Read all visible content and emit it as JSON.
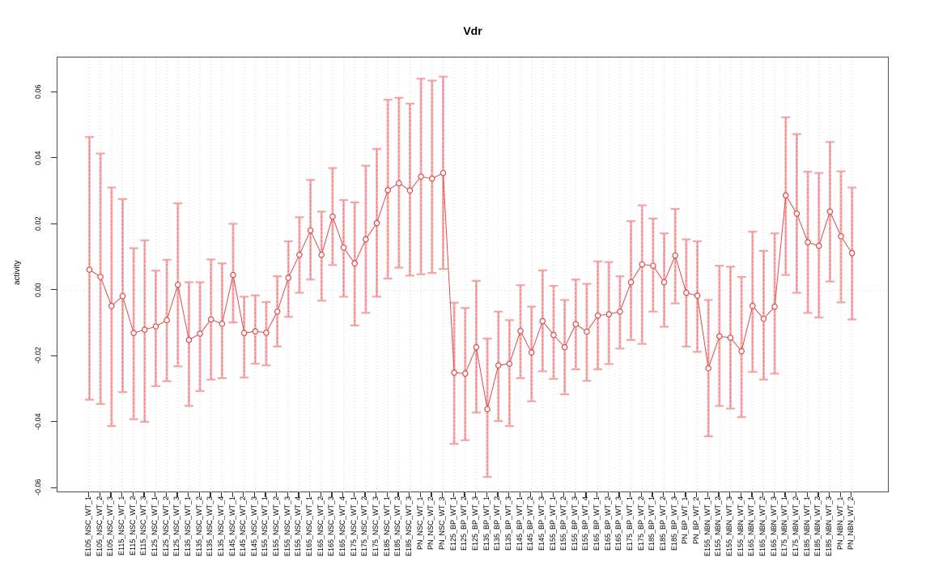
{
  "chart_data": {
    "type": "scatter",
    "title": "Vdr",
    "xlabel": "",
    "ylabel": "activity",
    "ylim": [
      -0.061,
      0.07
    ],
    "y_ticks": [
      -0.06,
      -0.04,
      -0.02,
      0.0,
      0.02,
      0.04,
      0.06
    ],
    "y_tick_labels": [
      "-0.06",
      "-0.04",
      "-0.02",
      "0.00",
      "0.02",
      "0.04",
      "0.06"
    ],
    "grid": "vertical dotted line per category, dotted horizontal line at 0",
    "legend_position": "none",
    "marker": "open-circle",
    "error_bars": true,
    "categories": [
      "E105_NSC_WT_1",
      "E105_NSC_WT_2",
      "E105_NSC_WT_3",
      "E115_NSC_WT_1",
      "E115_NSC_WT_2",
      "E115_NSC_WT_3",
      "E125_NSC_WT_1",
      "E125_NSC_WT_2",
      "E125_NSC_WT_3",
      "E135_NSC_WT_1",
      "E135_NSC_WT_2",
      "E135_NSC_WT_3",
      "E135_NSC_WT_4",
      "E145_NSC_WT_1",
      "E145_NSC_WT_2",
      "E145_NSC_WT_3",
      "E155_NSC_WT_1",
      "E155_NSC_WT_2",
      "E155_NSC_WT_3",
      "E155_NSC_WT_4",
      "E165_NSC_WT_1",
      "E165_NSC_WT_2",
      "E165_NSC_WT_3",
      "E165_NSC_WT_4",
      "E175_NSC_WT_1",
      "E175_NSC_WT_2",
      "E175_NSC_WT_3",
      "E185_NSC_WT_1",
      "E185_NSC_WT_2",
      "E185_NSC_WT_3",
      "PN_NSC_WT_1",
      "PN_NSC_WT_2",
      "PN_NSC_WT_3",
      "E125_BP_WT_1",
      "E125_BP_WT_2",
      "E125_BP_WT_3",
      "E135_BP_WT_1",
      "E135_BP_WT_2",
      "E135_BP_WT_3",
      "E145_BP_WT_1",
      "E145_BP_WT_2",
      "E145_BP_WT_3",
      "E155_BP_WT_1",
      "E155_BP_WT_2",
      "E155_BP_WT_3",
      "E155_BP_WT_4",
      "E165_BP_WT_1",
      "E165_BP_WT_2",
      "E165_BP_WT_3",
      "E175_BP_WT_1",
      "E175_BP_WT_2",
      "E185_BP_WT_1",
      "E185_BP_WT_2",
      "E185_BP_WT_3",
      "PN_BP_WT_1",
      "PN_BP_WT_2",
      "E155_NBN_WT_1",
      "E155_NBN_WT_2",
      "E155_NBN_WT_3",
      "E155_NBN_WT_4",
      "E165_NBN_WT_1",
      "E165_NBN_WT_2",
      "E165_NBN_WT_3",
      "E175_NBN_WT_1",
      "E175_NBN_WT_2",
      "E185_NBN_WT_1",
      "E185_NBN_WT_2",
      "E185_NBN_WT_3",
      "PN_NBN_WT_1",
      "PN_NBN_WT_2"
    ],
    "series": [
      {
        "name": "activity",
        "values": [
          0.0063,
          0.0041,
          -0.0047,
          -0.0017,
          -0.0129,
          -0.0119,
          -0.0109,
          -0.009,
          0.0017,
          -0.015,
          -0.0131,
          -0.0088,
          -0.0101,
          0.0047,
          -0.0129,
          -0.0124,
          -0.0128,
          -0.0064,
          0.0038,
          0.0108,
          0.0182,
          0.0108,
          0.0224,
          0.013,
          0.0082,
          0.0155,
          0.0204,
          0.0304,
          0.0325,
          0.0303,
          0.0345,
          0.0339,
          0.0356,
          -0.0249,
          -0.0252,
          -0.0172,
          -0.036,
          -0.0227,
          -0.0222,
          -0.0123,
          -0.0188,
          -0.0093,
          -0.0135,
          -0.0172,
          -0.0102,
          -0.0125,
          -0.0076,
          -0.0072,
          -0.0064,
          0.0025,
          0.0079,
          0.0075,
          0.0025,
          0.0106,
          -0.0007,
          -0.0016,
          -0.0236,
          -0.0139,
          -0.0143,
          -0.0184,
          -0.0047,
          -0.0086,
          -0.0049,
          0.0288,
          0.0233,
          0.0146,
          0.0135,
          0.0239,
          0.0164,
          0.0113
        ],
        "ci_low": [
          -0.0331,
          -0.0344,
          -0.0411,
          -0.0308,
          -0.039,
          -0.0398,
          -0.029,
          -0.0275,
          -0.023,
          -0.035,
          -0.0305,
          -0.027,
          -0.0266,
          -0.0097,
          -0.0264,
          -0.0222,
          -0.0227,
          -0.017,
          -0.008,
          -0.0007,
          0.0033,
          -0.0031,
          0.0077,
          -0.0019,
          -0.0106,
          -0.0068,
          -0.0019,
          0.0036,
          0.0069,
          0.0045,
          0.0049,
          0.0053,
          0.0065,
          -0.0465,
          -0.0454,
          -0.037,
          -0.0565,
          -0.0396,
          -0.0411,
          -0.0266,
          -0.0336,
          -0.0245,
          -0.0268,
          -0.0315,
          -0.0239,
          -0.0274,
          -0.0239,
          -0.0223,
          -0.0176,
          -0.015,
          -0.0162,
          -0.0064,
          -0.011,
          -0.0039,
          -0.017,
          -0.0186,
          -0.0442,
          -0.035,
          -0.0358,
          -0.0384,
          -0.0247,
          -0.027,
          -0.0252,
          0.0047,
          -0.0007,
          -0.0068,
          -0.0082,
          0.0027,
          -0.0036,
          -0.0088
        ],
        "ci_high": [
          0.0465,
          0.0415,
          0.0312,
          0.0277,
          0.0128,
          0.0152,
          0.006,
          0.0093,
          0.0264,
          0.0025,
          0.0025,
          0.0094,
          0.0082,
          0.0202,
          -0.0019,
          -0.0015,
          -0.0035,
          0.0043,
          0.0149,
          0.0222,
          0.0335,
          0.0239,
          0.0371,
          0.0274,
          0.0267,
          0.0378,
          0.0429,
          0.0578,
          0.0584,
          0.0566,
          0.0642,
          0.0636,
          0.0648,
          -0.0037,
          -0.0053,
          0.0029,
          -0.0146,
          -0.0064,
          -0.009,
          0.0016,
          -0.0049,
          0.0061,
          0.0014,
          -0.0029,
          0.0033,
          0.002,
          0.0088,
          0.0086,
          0.0043,
          0.021,
          0.0258,
          0.0218,
          0.0173,
          0.0247,
          0.0155,
          0.0149,
          -0.0029,
          0.0075,
          0.0072,
          0.0041,
          0.0178,
          0.012,
          0.0173,
          0.0525,
          0.0474,
          0.036,
          0.0356,
          0.045,
          0.0361,
          0.0312
        ]
      }
    ],
    "colors": {
      "point": "#e04a4a",
      "line": "#e04a4a",
      "error_bar": "#f5a3a3",
      "error_bar_core": "#ef6a6a",
      "grid": "#d9d9d9",
      "axis_box": "#4d4d4d",
      "tick": "#333333",
      "text": "#000000",
      "background": "#ffffff"
    }
  }
}
